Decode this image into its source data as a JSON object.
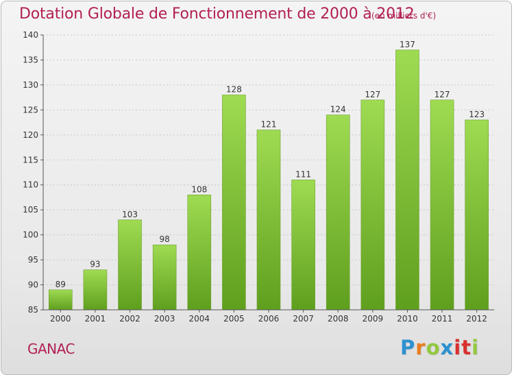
{
  "header": {
    "title": "Dotation Globale de Fonctionnement de 2000 à 2012",
    "subtitle": "(en milliers d'€)"
  },
  "footer": {
    "place": "GANAC",
    "brand": "Proxiti",
    "brand_letters": [
      "P",
      "r",
      "o",
      "x",
      "i",
      "t",
      "i"
    ],
    "brand_colors": [
      "#2c91d1",
      "#e97d1e",
      "#93c83f",
      "#2c91d1",
      "#d8312e",
      "#d8312e",
      "#93c83f"
    ]
  },
  "colors": {
    "accent": "#b11f53",
    "bar_top": "#9fdb52",
    "bar_bottom": "#5f9f1e",
    "bar_edge": "#6d9f30",
    "axis": "#555555",
    "grid": "#c7c7c7"
  },
  "chart_data": {
    "type": "bar",
    "categories": [
      "2000",
      "2001",
      "2002",
      "2003",
      "2004",
      "2005",
      "2006",
      "2007",
      "2008",
      "2009",
      "2010",
      "2011",
      "2012"
    ],
    "values": [
      89,
      93,
      103,
      98,
      108,
      128,
      121,
      111,
      124,
      127,
      137,
      127,
      123
    ],
    "ylim": [
      85,
      140
    ],
    "yticks": [
      85,
      90,
      95,
      100,
      105,
      110,
      115,
      120,
      125,
      130,
      135,
      140
    ],
    "grid": true,
    "data_labels": true
  }
}
